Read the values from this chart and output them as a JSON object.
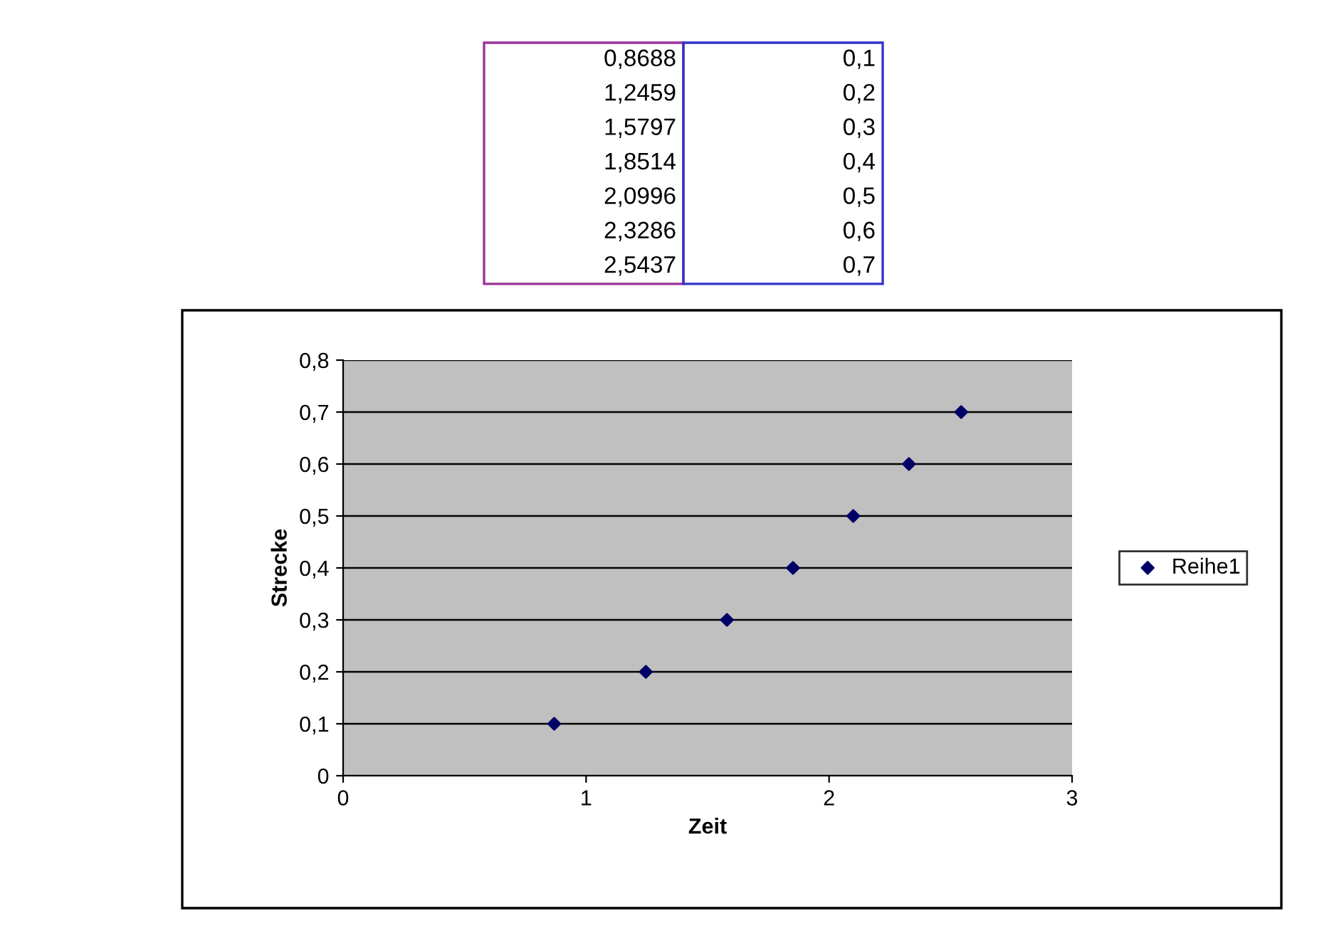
{
  "chart_data": {
    "type": "scatter",
    "xlabel": "Zeit",
    "ylabel": "Strecke",
    "x": [
      0.8688,
      1.2459,
      1.5797,
      1.8514,
      2.0996,
      2.3286,
      2.5437
    ],
    "series": [
      {
        "name": "Reihe1",
        "color": "#000066",
        "values": [
          0.1,
          0.2,
          0.3,
          0.4,
          0.5,
          0.6,
          0.7
        ]
      }
    ],
    "xlim": [
      0,
      3
    ],
    "xticks": [
      0,
      1,
      2,
      3
    ],
    "ylim": [
      0,
      0.8
    ],
    "yticks": [
      {
        "value": 0,
        "label": "0"
      },
      {
        "value": 0.1,
        "label": "0,1"
      },
      {
        "value": 0.2,
        "label": "0,2"
      },
      {
        "value": 0.3,
        "label": "0,3"
      },
      {
        "value": 0.4,
        "label": "0,4"
      },
      {
        "value": 0.5,
        "label": "0,5"
      },
      {
        "value": 0.6,
        "label": "0,6"
      },
      {
        "value": 0.7,
        "label": "0,7"
      },
      {
        "value": 0.8,
        "label": "0,8"
      }
    ],
    "grid": "y",
    "legend": "right",
    "marker": "diamond",
    "annotations": [
      "0,8688",
      "1,2459",
      "1,5797",
      "1,8514",
      "2,0996",
      "2,3286",
      "2,5437",
      "0,1",
      "0,2",
      "0,3",
      "0,4",
      "0,5",
      "0,6",
      "0,7"
    ]
  }
}
